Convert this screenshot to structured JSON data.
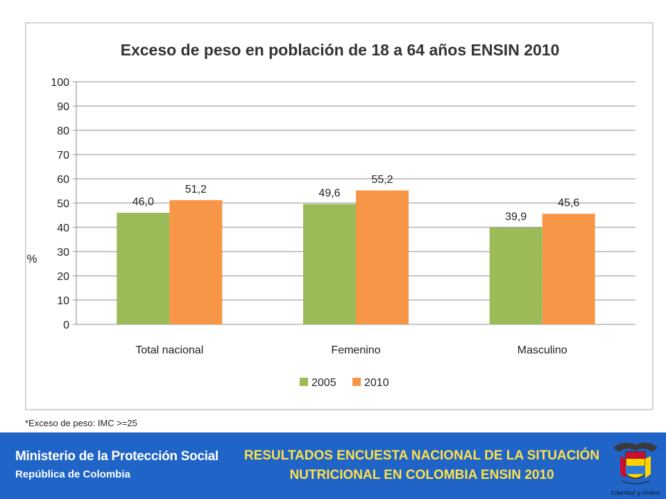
{
  "chart_data": {
    "type": "bar",
    "title": "Exceso de peso en población de 18 a 64 años ENSIN 2010",
    "ylabel": "%",
    "xlabel": "",
    "categories": [
      "Total nacional",
      "Femenino",
      "Masculino"
    ],
    "series": [
      {
        "name": "2005",
        "values": [
          46.0,
          49.6,
          39.9
        ],
        "labels": [
          "46,0",
          "49,6",
          "39,9"
        ],
        "color": "#9bbb59"
      },
      {
        "name": "2010",
        "values": [
          51.2,
          55.2,
          45.6
        ],
        "labels": [
          "51,2",
          "55,2",
          "45,6"
        ],
        "color": "#f79646"
      }
    ],
    "ylim": [
      0,
      100
    ],
    "yticks": [
      0,
      10,
      20,
      30,
      40,
      50,
      60,
      70,
      80,
      90,
      100
    ],
    "grid": true,
    "legend_position": "bottom"
  },
  "footnote": "*Exceso de peso: IMC >=25",
  "footer": {
    "ministry": "Ministerio de la Protección Social",
    "country": "República de Colombia",
    "title": "RESULTADOS ENCUESTA NACIONAL DE LA SITUACIÓN NUTRICIONAL EN COLOMBIA ENSIN 2010",
    "emblem_motto": "Libertad y Orden"
  },
  "colors": {
    "footer_bg": "#1f64c6",
    "footer_title": "#ffe14a",
    "grid": "#8c8c8c"
  }
}
